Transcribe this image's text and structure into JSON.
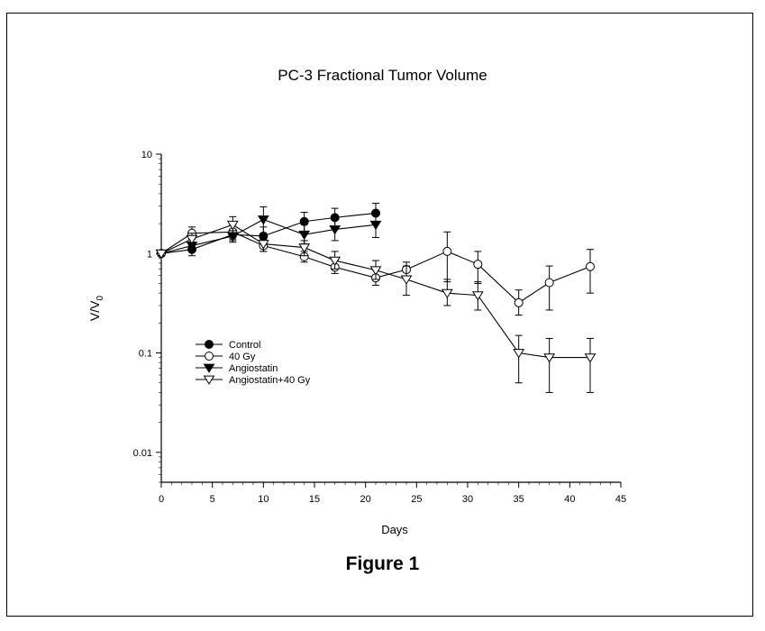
{
  "chart_data": {
    "type": "line",
    "title": "PC-3 Fractional Tumor Volume",
    "xlabel": "Days",
    "ylabel_main": "V/V",
    "ylabel_sub": "0",
    "y_scale": "log",
    "xlim": [
      0,
      45
    ],
    "ylim": [
      0.005,
      10
    ],
    "x_ticks": [
      0,
      5,
      10,
      15,
      20,
      25,
      30,
      35,
      40,
      45
    ],
    "x_tick_labels": [
      "0",
      "5",
      "10",
      "15",
      "20",
      "25",
      "30",
      "35",
      "40",
      "45"
    ],
    "y_ticks": [
      0.01,
      0.1,
      1,
      10
    ],
    "y_tick_labels": [
      "0.01",
      "0.1",
      "1",
      "10"
    ],
    "grid": false,
    "legend_position": "middle-left",
    "series": [
      {
        "name": "Control",
        "marker": "circle",
        "filled": true,
        "x": [
          0,
          3,
          7,
          10,
          14,
          17,
          21
        ],
        "y": [
          1.0,
          1.1,
          1.55,
          1.5,
          2.1,
          2.3,
          2.55
        ],
        "err_low": [
          0.95,
          0.95,
          1.35,
          1.15,
          1.6,
          1.85,
          2.0
        ],
        "err_high": [
          1.05,
          1.3,
          1.75,
          1.85,
          2.6,
          2.85,
          3.2
        ]
      },
      {
        "name": "40 Gy",
        "marker": "circle",
        "filled": false,
        "x": [
          0,
          3,
          7,
          10,
          14,
          17,
          21,
          24,
          28,
          31,
          35,
          38,
          42
        ],
        "y": [
          1.0,
          1.6,
          1.65,
          1.2,
          0.93,
          0.73,
          0.57,
          0.69,
          1.05,
          0.78,
          0.32,
          0.51,
          0.74
        ],
        "err_low": [
          0.95,
          1.4,
          1.4,
          1.05,
          0.82,
          0.63,
          0.48,
          0.58,
          0.52,
          0.5,
          0.24,
          0.27,
          0.4
        ],
        "err_high": [
          1.05,
          1.85,
          1.95,
          1.38,
          1.05,
          0.85,
          0.68,
          0.82,
          1.65,
          1.05,
          0.43,
          0.75,
          1.1
        ]
      },
      {
        "name": "Angiostatin",
        "marker": "triangle-down",
        "filled": true,
        "x": [
          0,
          3,
          7,
          10,
          14,
          17,
          21
        ],
        "y": [
          1.0,
          1.2,
          1.5,
          2.2,
          1.55,
          1.75,
          1.95
        ],
        "err_low": [
          0.95,
          1.05,
          1.3,
          1.6,
          1.25,
          1.35,
          1.45
        ],
        "err_high": [
          1.05,
          1.4,
          1.7,
          2.95,
          1.95,
          2.25,
          2.5
        ]
      },
      {
        "name": "Angiostatin+40 Gy",
        "marker": "triangle-down",
        "filled": false,
        "x": [
          0,
          3,
          7,
          10,
          14,
          17,
          21,
          24,
          28,
          31,
          35,
          38,
          42
        ],
        "y": [
          1.0,
          1.4,
          1.95,
          1.25,
          1.15,
          0.85,
          0.68,
          0.55,
          0.4,
          0.38,
          0.1,
          0.09,
          0.09
        ],
        "err_low": [
          0.95,
          1.2,
          1.6,
          1.05,
          0.95,
          0.7,
          0.55,
          0.38,
          0.3,
          0.27,
          0.05,
          0.04,
          0.04
        ],
        "err_high": [
          1.05,
          1.6,
          2.35,
          1.45,
          1.35,
          1.05,
          0.85,
          0.75,
          0.55,
          0.52,
          0.15,
          0.14,
          0.14
        ]
      }
    ]
  },
  "figure_caption": "Figure 1"
}
